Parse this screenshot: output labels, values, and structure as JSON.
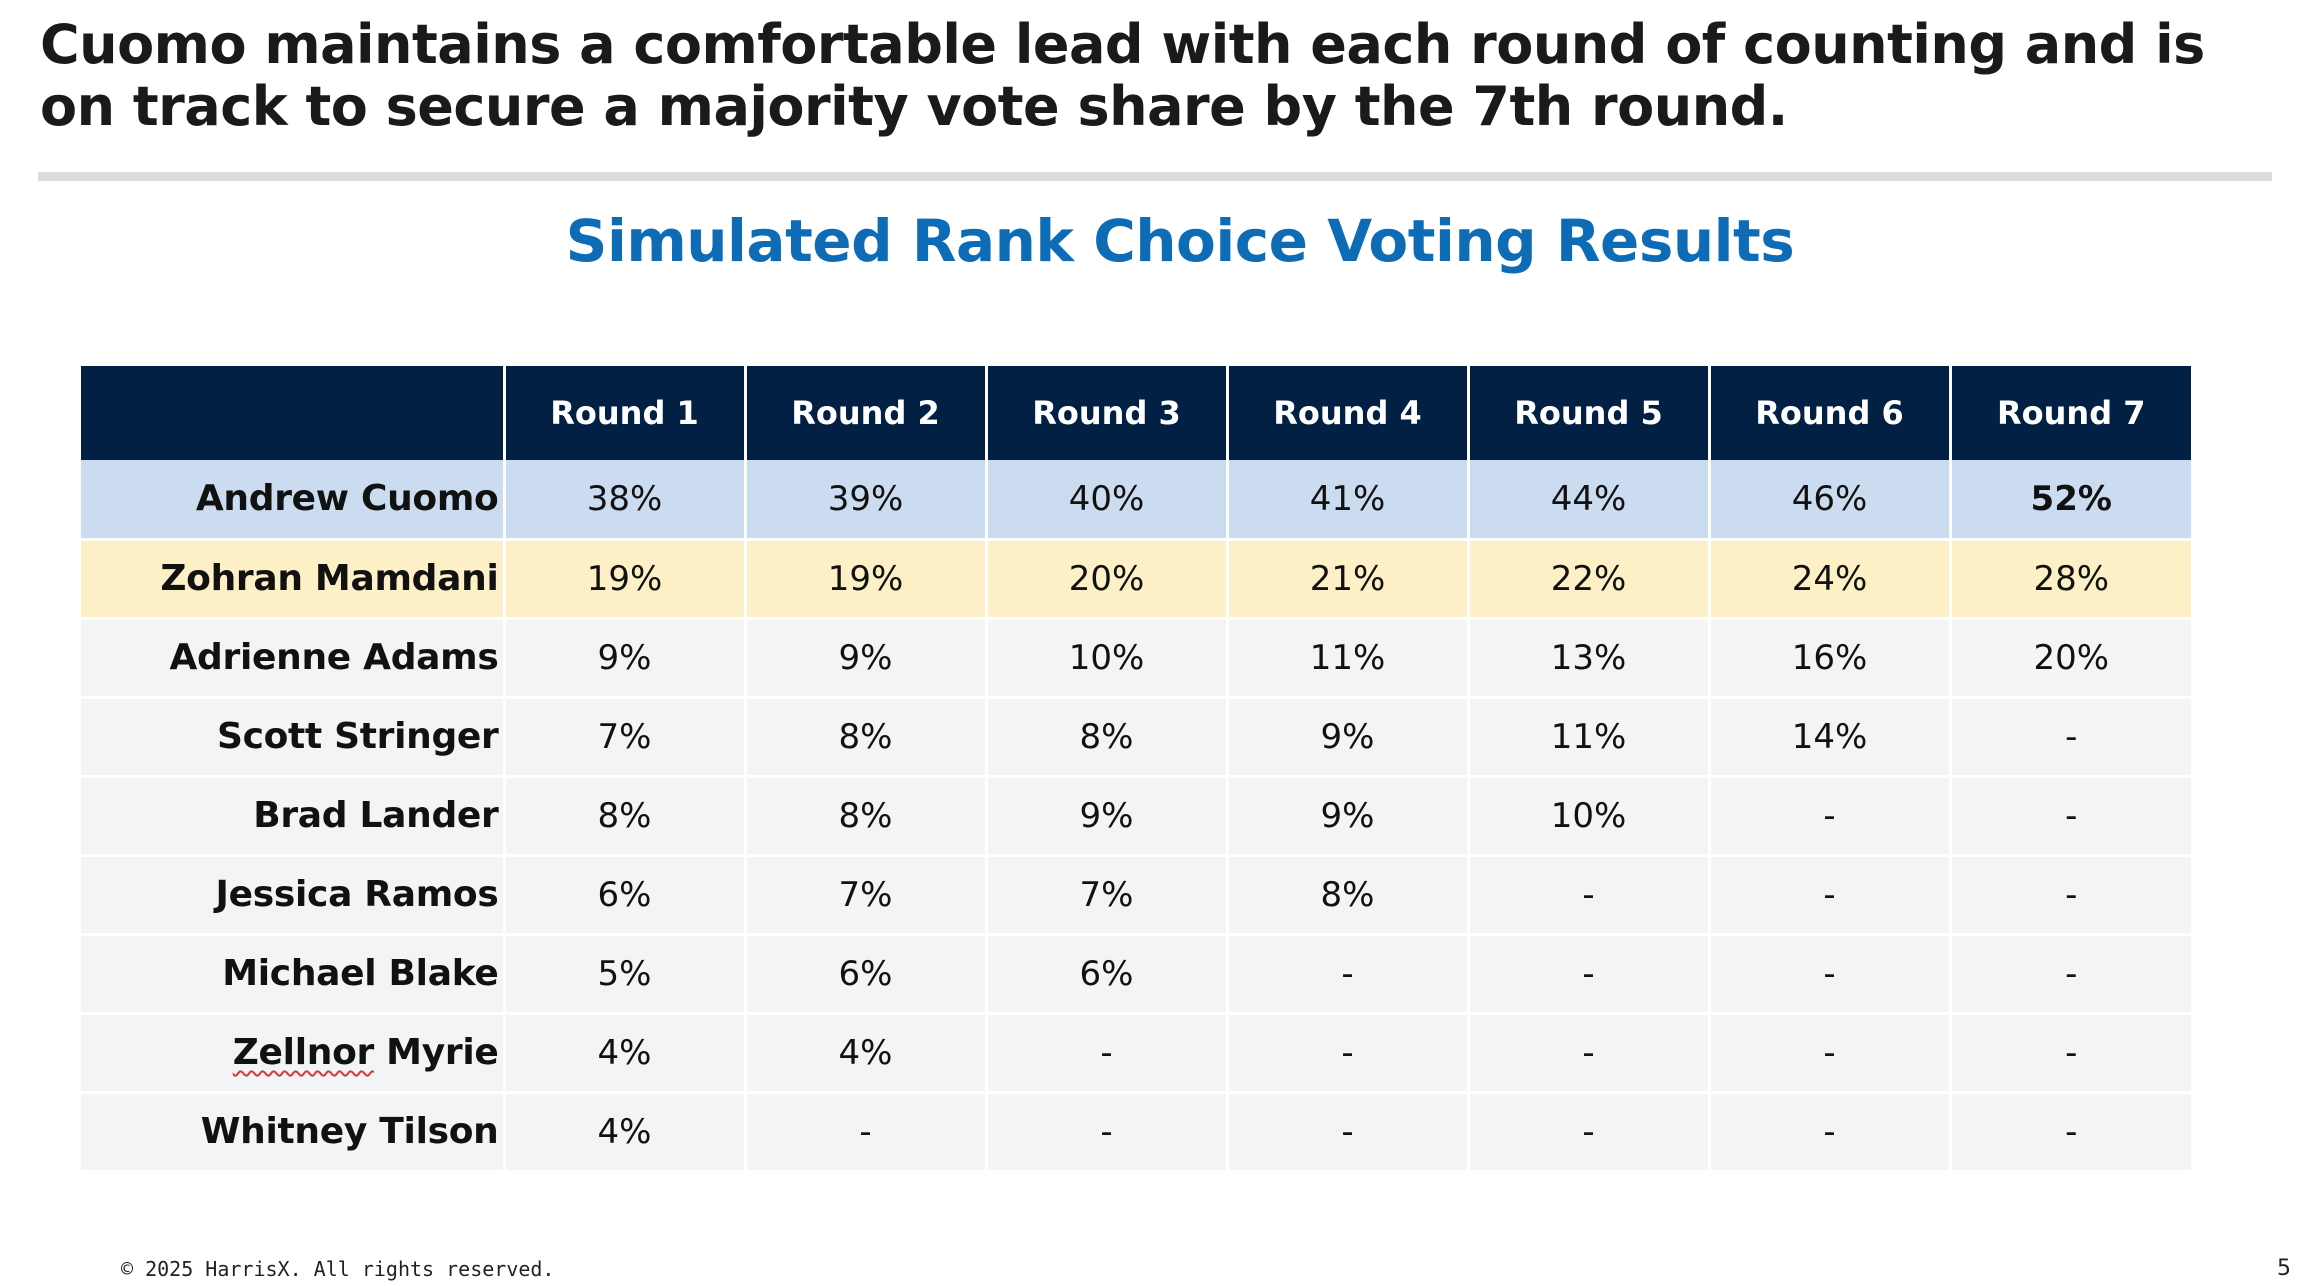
{
  "headline": "Cuomo maintains a comfortable lead with each round of counting and is on track to secure a majority vote share by the 7th round.",
  "subtitle": "Simulated Rank Choice Voting Results",
  "table": {
    "corner_label": "",
    "rounds": [
      "Round 1",
      "Round 2",
      "Round 3",
      "Round 4",
      "Round 5",
      "Round 6",
      "Round 7"
    ],
    "rows": [
      {
        "name_first": "Andrew Cuomo",
        "name_rest": "",
        "values": [
          "38%",
          "39%",
          "40%",
          "41%",
          "44%",
          "46%",
          "52%"
        ]
      },
      {
        "name_first": "Zohran Mamdani",
        "name_rest": "",
        "values": [
          "19%",
          "19%",
          "20%",
          "21%",
          "22%",
          "24%",
          "28%"
        ]
      },
      {
        "name_first": "Adrienne Adams",
        "name_rest": "",
        "values": [
          "9%",
          "9%",
          "10%",
          "11%",
          "13%",
          "16%",
          "20%"
        ]
      },
      {
        "name_first": "Scott Stringer",
        "name_rest": "",
        "values": [
          "7%",
          "8%",
          "8%",
          "9%",
          "11%",
          "14%",
          "-"
        ]
      },
      {
        "name_first": "Brad Lander",
        "name_rest": "",
        "values": [
          "8%",
          "8%",
          "9%",
          "9%",
          "10%",
          "-",
          "-"
        ]
      },
      {
        "name_first": "Jessica Ramos",
        "name_rest": "",
        "values": [
          "6%",
          "7%",
          "7%",
          "8%",
          "-",
          "-",
          "-"
        ]
      },
      {
        "name_first": "Michael Blake",
        "name_rest": "",
        "values": [
          "5%",
          "6%",
          "6%",
          "-",
          "-",
          "-",
          "-"
        ]
      },
      {
        "name_first": "Zellnor",
        "name_rest": " Myrie",
        "values": [
          "4%",
          "4%",
          "-",
          "-",
          "-",
          "-",
          "-"
        ]
      },
      {
        "name_first": "Whitney Tilson",
        "name_rest": "",
        "values": [
          "4%",
          "-",
          "-",
          "-",
          "-",
          "-",
          "-"
        ]
      }
    ]
  },
  "colors": {
    "header_bg": "#021f44",
    "subtitle": "#0e6bb6",
    "cuomo_row": "#ccdcf0",
    "mamdani_row": "#fdf0c6",
    "default_row": "#f3f4f6"
  },
  "footer": {
    "copyright": "© 2025 HarrisX. All rights reserved.",
    "page_number": "5"
  }
}
